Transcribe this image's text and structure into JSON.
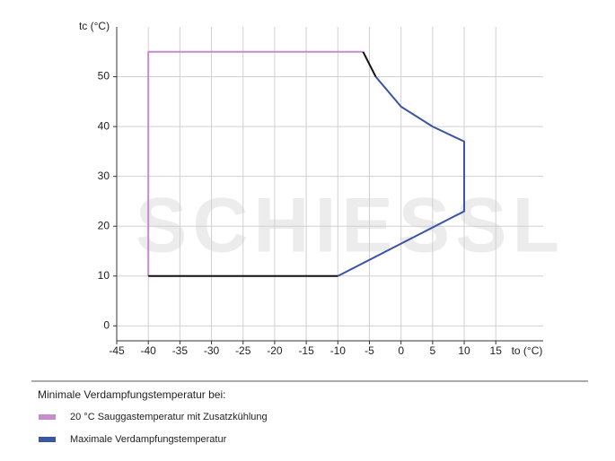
{
  "chart_data": {
    "type": "line",
    "watermark": "SCHIESSL",
    "xlabel": "to (°C)",
    "ylabel": "tc (°C)",
    "xlim": [
      -45,
      22.5
    ],
    "ylim": [
      -3,
      60
    ],
    "xticks": [
      -45,
      -40,
      -35,
      -30,
      -25,
      -20,
      -15,
      -10,
      -5,
      0,
      5,
      10,
      15
    ],
    "yticks": [
      0,
      10,
      20,
      30,
      40,
      50
    ],
    "grid": true,
    "legend_title": "Minimale Verdampfungstemperatur bei:",
    "series": [
      {
        "name": "20 °C Sauggastemperatur mit Zusatzkühlung",
        "color": "#c68ccc",
        "x": [
          -40,
          -40,
          -6
        ],
        "values": [
          10,
          55,
          55
        ]
      },
      {
        "name": "Maximale Verdampfungstemperatur",
        "color": "#3a55a4",
        "x": [
          -4,
          0,
          5,
          10,
          10,
          -10
        ],
        "values": [
          50,
          44,
          40,
          37,
          23,
          10
        ]
      },
      {
        "color": "#111111",
        "x": [
          -40,
          -10,
          null,
          -6,
          -4
        ],
        "values": [
          10,
          10,
          null,
          55,
          50
        ]
      }
    ]
  }
}
